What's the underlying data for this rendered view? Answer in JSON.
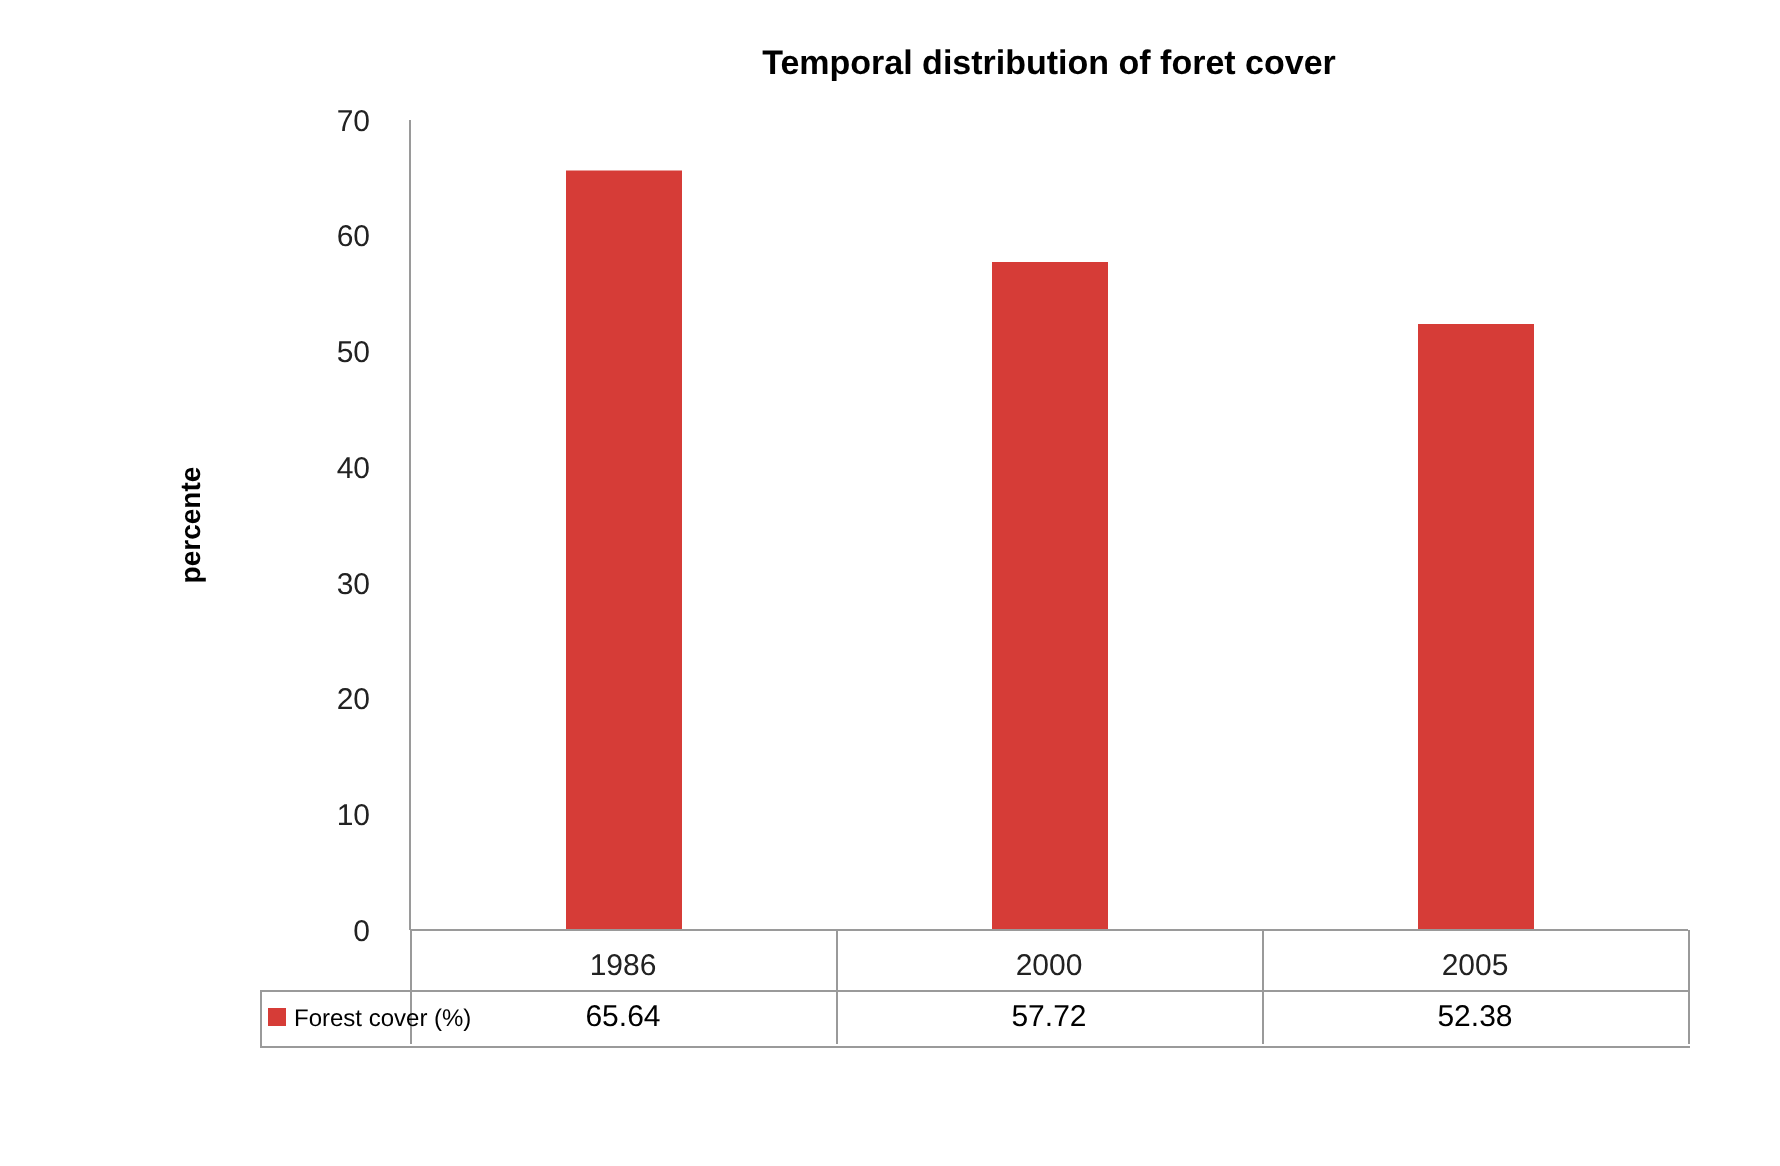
{
  "chart_data": {
    "type": "bar",
    "title": "Temporal distribution of foret cover",
    "ylabel": "percente",
    "categories": [
      "1986",
      "2000",
      "2005"
    ],
    "series": [
      {
        "name": "Forest cover (%)",
        "color": "#d63c37",
        "values": [
          65.64,
          57.72,
          52.38
        ]
      }
    ],
    "ylim": [
      0,
      70
    ],
    "yticks": [
      0,
      10,
      20,
      30,
      40,
      50,
      60,
      70
    ],
    "legend": "bottom",
    "data_labels": true
  }
}
